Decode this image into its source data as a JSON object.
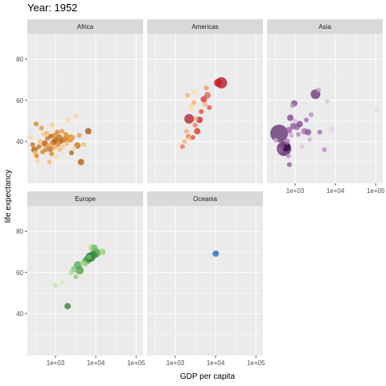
{
  "chart_data": {
    "type": "scatter",
    "title": "Year: 1952",
    "xlabel": "GDP per capita",
    "ylabel": "life expectancy",
    "x_scale": "log10",
    "xlim": [
      200,
      150000
    ],
    "ylim": [
      22,
      90
    ],
    "x_ticks": [
      {
        "value": 1000,
        "label": "1e+03"
      },
      {
        "value": 10000,
        "label": "1e+04"
      },
      {
        "value": 100000,
        "label": "1e+05"
      }
    ],
    "y_ticks": [
      {
        "value": 40,
        "label": "40"
      },
      {
        "value": 60,
        "label": "60"
      },
      {
        "value": 80,
        "label": "80"
      }
    ],
    "grid": true,
    "legend": "none",
    "colors": {
      "panel_bg": "#ebebeb",
      "strip_bg": "#d9d9d9",
      "grid": "#ffffff"
    },
    "panels": [
      {
        "name": "Africa",
        "points": [
          {
            "x": 240,
            "y": 42.0,
            "size": 3,
            "color": "#fdd49e"
          },
          {
            "x": 270,
            "y": 38.5,
            "size": 3,
            "color": "#cc6c0e"
          },
          {
            "x": 300,
            "y": 36.0,
            "size": 4,
            "color": "#b35806"
          },
          {
            "x": 310,
            "y": 34.5,
            "size": 3,
            "color": "#fdb863"
          },
          {
            "x": 330,
            "y": 48.5,
            "size": 3,
            "color": "#d9771a"
          },
          {
            "x": 340,
            "y": 33.0,
            "size": 3,
            "color": "#e08214"
          },
          {
            "x": 360,
            "y": 30.5,
            "size": 3,
            "color": "#fdd0a2"
          },
          {
            "x": 390,
            "y": 37.5,
            "size": 3,
            "color": "#c56a0b"
          },
          {
            "x": 420,
            "y": 40.0,
            "size": 3,
            "color": "#fdb863"
          },
          {
            "x": 450,
            "y": 46.5,
            "size": 3,
            "color": "#e69138"
          },
          {
            "x": 480,
            "y": 35.0,
            "size": 3,
            "color": "#d97c1a"
          },
          {
            "x": 510,
            "y": 43.5,
            "size": 3,
            "color": "#fdc68a"
          },
          {
            "x": 540,
            "y": 39.0,
            "size": 4,
            "color": "#b35806"
          },
          {
            "x": 570,
            "y": 36.0,
            "size": 3,
            "color": "#e08214"
          },
          {
            "x": 600,
            "y": 44.0,
            "size": 3,
            "color": "#f7b46a"
          },
          {
            "x": 630,
            "y": 41.5,
            "size": 3,
            "color": "#d46f12"
          },
          {
            "x": 660,
            "y": 38.0,
            "size": 3,
            "color": "#e79a4b"
          },
          {
            "x": 700,
            "y": 30.0,
            "size": 3,
            "color": "#fdb863"
          },
          {
            "x": 730,
            "y": 36.5,
            "size": 4,
            "color": "#c9650c"
          },
          {
            "x": 760,
            "y": 42.5,
            "size": 3,
            "color": "#b35806"
          },
          {
            "x": 800,
            "y": 34.0,
            "size": 3,
            "color": "#e08214"
          },
          {
            "x": 840,
            "y": 48.0,
            "size": 3,
            "color": "#fdc68a"
          },
          {
            "x": 880,
            "y": 39.5,
            "size": 4,
            "color": "#cf6d10"
          },
          {
            "x": 920,
            "y": 43.0,
            "size": 3,
            "color": "#e08214"
          },
          {
            "x": 960,
            "y": 37.0,
            "size": 3,
            "color": "#f3a85a"
          },
          {
            "x": 1000,
            "y": 40.5,
            "size": 4,
            "color": "#b35806"
          },
          {
            "x": 1050,
            "y": 32.5,
            "size": 3,
            "color": "#fdd49e"
          },
          {
            "x": 1100,
            "y": 44.5,
            "size": 3,
            "color": "#d9771a"
          },
          {
            "x": 1160,
            "y": 38.5,
            "size": 3,
            "color": "#e08214"
          },
          {
            "x": 1220,
            "y": 42.0,
            "size": 4,
            "color": "#c56a0b"
          },
          {
            "x": 1290,
            "y": 36.0,
            "size": 3,
            "color": "#fdb863"
          },
          {
            "x": 1360,
            "y": 40.0,
            "size": 3,
            "color": "#b35806"
          },
          {
            "x": 1440,
            "y": 45.0,
            "size": 3,
            "color": "#e69138"
          },
          {
            "x": 1520,
            "y": 37.5,
            "size": 3,
            "color": "#fdc68a"
          },
          {
            "x": 1650,
            "y": 41.0,
            "size": 4,
            "color": "#d46f12"
          },
          {
            "x": 1800,
            "y": 43.5,
            "size": 3,
            "color": "#e08214"
          },
          {
            "x": 1950,
            "y": 39.0,
            "size": 3,
            "color": "#fdb863"
          },
          {
            "x": 2100,
            "y": 50.5,
            "size": 3,
            "color": "#fdd49e"
          },
          {
            "x": 2300,
            "y": 41.5,
            "size": 5,
            "color": "#e08214"
          },
          {
            "x": 2500,
            "y": 34.5,
            "size": 3,
            "color": "#b35806"
          },
          {
            "x": 2700,
            "y": 42.0,
            "size": 3,
            "color": "#f0a050"
          },
          {
            "x": 2950,
            "y": 36.5,
            "size": 3,
            "color": "#fdd0a2"
          },
          {
            "x": 3200,
            "y": 52.5,
            "size": 3,
            "color": "#fdd49e"
          },
          {
            "x": 3500,
            "y": 38.0,
            "size": 4,
            "color": "#cc6c0e"
          },
          {
            "x": 3900,
            "y": 43.0,
            "size": 3,
            "color": "#e79a4b"
          },
          {
            "x": 4300,
            "y": 30.0,
            "size": 4,
            "color": "#b35806"
          },
          {
            "x": 5000,
            "y": 38.5,
            "size": 3,
            "color": "#fdb863"
          },
          {
            "x": 6500,
            "y": 45.0,
            "size": 4,
            "color": "#a15008"
          }
        ]
      },
      {
        "name": "Americas",
        "points": [
          {
            "x": 1500,
            "y": 37.5,
            "size": 3,
            "color": "#f46d43"
          },
          {
            "x": 1700,
            "y": 40.0,
            "size": 3,
            "color": "#fdae61"
          },
          {
            "x": 1900,
            "y": 45.0,
            "size": 3,
            "color": "#f4a582"
          },
          {
            "x": 2000,
            "y": 62.5,
            "size": 3,
            "color": "#fdae61"
          },
          {
            "x": 2100,
            "y": 42.5,
            "size": 3,
            "color": "#f46d43"
          },
          {
            "x": 2200,
            "y": 51.0,
            "size": 6,
            "color": "#b2182b"
          },
          {
            "x": 2350,
            "y": 41.5,
            "size": 3,
            "color": "#fdbf6f"
          },
          {
            "x": 2450,
            "y": 56.0,
            "size": 3,
            "color": "#fee08b"
          },
          {
            "x": 2600,
            "y": 57.5,
            "size": 3,
            "color": "#fdd49e"
          },
          {
            "x": 2750,
            "y": 42.0,
            "size": 3,
            "color": "#e34a33"
          },
          {
            "x": 2900,
            "y": 59.0,
            "size": 3,
            "color": "#fdae61"
          },
          {
            "x": 3000,
            "y": 64.0,
            "size": 3,
            "color": "#fee090"
          },
          {
            "x": 3100,
            "y": 48.0,
            "size": 3,
            "color": "#f46d43"
          },
          {
            "x": 3250,
            "y": 51.0,
            "size": 3,
            "color": "#fdae61"
          },
          {
            "x": 3500,
            "y": 45.0,
            "size": 4,
            "color": "#d7301f"
          },
          {
            "x": 4000,
            "y": 50.5,
            "size": 4,
            "color": "#cb181d"
          },
          {
            "x": 4400,
            "y": 54.5,
            "size": 3,
            "color": "#ef3b2c"
          },
          {
            "x": 5100,
            "y": 60.5,
            "size": 4,
            "color": "#d73027"
          },
          {
            "x": 5500,
            "y": 58.0,
            "size": 3,
            "color": "#fdae61"
          },
          {
            "x": 5900,
            "y": 66.0,
            "size": 3,
            "color": "#fc8d59"
          },
          {
            "x": 6300,
            "y": 62.5,
            "size": 4,
            "color": "#d6604d"
          },
          {
            "x": 7000,
            "y": 56.5,
            "size": 3,
            "color": "#e34a33"
          },
          {
            "x": 11400,
            "y": 68.5,
            "size": 5,
            "color": "#cb181d"
          },
          {
            "x": 13990,
            "y": 68.5,
            "size": 7,
            "color": "#b30f1f"
          }
        ]
      },
      {
        "name": "Asia",
        "points": [
          {
            "x": 330,
            "y": 40.5,
            "size": 3,
            "color": "#d8b2d8"
          },
          {
            "x": 400,
            "y": 43.9,
            "size": 11,
            "color": "#5b2a6e"
          },
          {
            "x": 430,
            "y": 35.9,
            "size": 4,
            "color": "#9e64a8"
          },
          {
            "x": 460,
            "y": 38.0,
            "size": 4,
            "color": "#8c4f9a"
          },
          {
            "x": 530,
            "y": 36.5,
            "size": 9,
            "color": "#4d1a5e"
          },
          {
            "x": 580,
            "y": 37.5,
            "size": 6,
            "color": "#2d0a3d"
          },
          {
            "x": 620,
            "y": 40.0,
            "size": 4,
            "color": "#a874b4"
          },
          {
            "x": 680,
            "y": 33.0,
            "size": 3,
            "color": "#b583be"
          },
          {
            "x": 700,
            "y": 45.5,
            "size": 4,
            "color": "#9a5aa6"
          },
          {
            "x": 720,
            "y": 28.8,
            "size": 3,
            "color": "#8b4f98"
          },
          {
            "x": 760,
            "y": 51.5,
            "size": 4,
            "color": "#7a3e8a"
          },
          {
            "x": 800,
            "y": 43.0,
            "size": 3,
            "color": "#c8a2cf"
          },
          {
            "x": 860,
            "y": 57.5,
            "size": 3,
            "color": "#b893c0"
          },
          {
            "x": 900,
            "y": 47.5,
            "size": 4,
            "color": "#8e529c"
          },
          {
            "x": 950,
            "y": 58.5,
            "size": 4,
            "color": "#7b4389"
          },
          {
            "x": 1000,
            "y": 50.0,
            "size": 3,
            "color": "#d7b8dc"
          },
          {
            "x": 1100,
            "y": 47.0,
            "size": 4,
            "color": "#9b61a8"
          },
          {
            "x": 1200,
            "y": 43.5,
            "size": 3,
            "color": "#b083bb"
          },
          {
            "x": 1300,
            "y": 48.5,
            "size": 4,
            "color": "#7c3f8b"
          },
          {
            "x": 1500,
            "y": 37.5,
            "size": 3,
            "color": "#e2c6e6"
          },
          {
            "x": 1700,
            "y": 45.0,
            "size": 4,
            "color": "#a46bb0"
          },
          {
            "x": 1900,
            "y": 50.5,
            "size": 3,
            "color": "#9e66aa"
          },
          {
            "x": 2100,
            "y": 44.5,
            "size": 4,
            "color": "#8a4c97"
          },
          {
            "x": 2300,
            "y": 41.0,
            "size": 3,
            "color": "#d2acd8"
          },
          {
            "x": 2500,
            "y": 53.0,
            "size": 3,
            "color": "#b68cc1"
          },
          {
            "x": 3200,
            "y": 63.0,
            "size": 6,
            "color": "#6a2c7a"
          },
          {
            "x": 3800,
            "y": 65.0,
            "size": 3,
            "color": "#c096c8"
          },
          {
            "x": 4100,
            "y": 44.5,
            "size": 3,
            "color": "#9b63a8"
          },
          {
            "x": 5300,
            "y": 36.0,
            "size": 3,
            "color": "#b888c1"
          },
          {
            "x": 6200,
            "y": 59.5,
            "size": 3,
            "color": "#dcc0e1"
          },
          {
            "x": 8000,
            "y": 46.0,
            "size": 4,
            "color": "#e6d2ea"
          },
          {
            "x": 108000,
            "y": 55.5,
            "size": 3,
            "color": "#e8d6ec"
          }
        ]
      },
      {
        "name": "Europe",
        "points": [
          {
            "x": 990,
            "y": 53.8,
            "size": 3,
            "color": "#c2e699"
          },
          {
            "x": 1500,
            "y": 55.2,
            "size": 3,
            "color": "#d9f0a3"
          },
          {
            "x": 2000,
            "y": 43.6,
            "size": 4,
            "color": "#2d7a2d"
          },
          {
            "x": 2400,
            "y": 59.8,
            "size": 3,
            "color": "#addd8e"
          },
          {
            "x": 2900,
            "y": 61.5,
            "size": 4,
            "color": "#78c679"
          },
          {
            "x": 3200,
            "y": 57.9,
            "size": 3,
            "color": "#8ccc6a"
          },
          {
            "x": 3600,
            "y": 63.5,
            "size": 5,
            "color": "#41ab5d"
          },
          {
            "x": 4000,
            "y": 61.0,
            "size": 5,
            "color": "#4e9a3a"
          },
          {
            "x": 4700,
            "y": 64.5,
            "size": 3,
            "color": "#b5dc8b"
          },
          {
            "x": 5200,
            "y": 65.0,
            "size": 4,
            "color": "#6ab04c"
          },
          {
            "x": 5600,
            "y": 64.0,
            "size": 3,
            "color": "#a1d477"
          },
          {
            "x": 6100,
            "y": 66.0,
            "size": 5,
            "color": "#238b45"
          },
          {
            "x": 6800,
            "y": 67.5,
            "size": 3,
            "color": "#7fbf59"
          },
          {
            "x": 7400,
            "y": 67.5,
            "size": 6,
            "color": "#1b6b2e"
          },
          {
            "x": 8000,
            "y": 72.0,
            "size": 4,
            "color": "#a6d96a"
          },
          {
            "x": 8700,
            "y": 68.5,
            "size": 5,
            "color": "#2e8b3e"
          },
          {
            "x": 9300,
            "y": 72.0,
            "size": 4,
            "color": "#66bd63"
          },
          {
            "x": 9900,
            "y": 69.5,
            "size": 6,
            "color": "#4c9a38"
          },
          {
            "x": 14700,
            "y": 70.0,
            "size": 4,
            "color": "#98cf6f"
          }
        ]
      },
      {
        "name": "Oceania",
        "points": [
          {
            "x": 10040,
            "y": 69.1,
            "size": 4,
            "color": "#2b6cb0"
          },
          {
            "x": 10560,
            "y": 69.4,
            "size": 3,
            "color": "#4a7ec8"
          }
        ]
      }
    ]
  }
}
